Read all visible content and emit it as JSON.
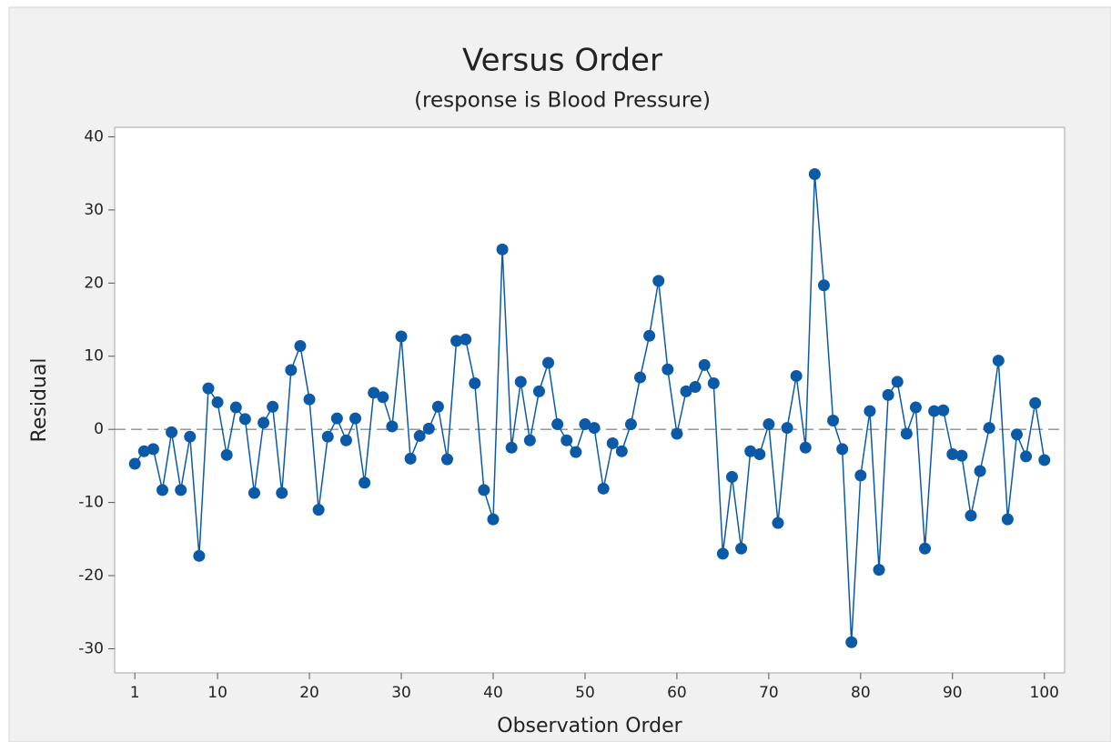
{
  "chart_data": {
    "type": "line",
    "title": "Versus Order",
    "subtitle": "(response is Blood Pressure)",
    "x_label": "Observation Order",
    "y_label": "Residual",
    "x": [
      1,
      2,
      3,
      4,
      5,
      6,
      7,
      8,
      9,
      10,
      11,
      12,
      13,
      14,
      15,
      16,
      17,
      18,
      19,
      20,
      21,
      22,
      23,
      24,
      25,
      26,
      27,
      28,
      29,
      30,
      31,
      32,
      33,
      34,
      35,
      36,
      37,
      38,
      39,
      40,
      41,
      42,
      43,
      44,
      45,
      46,
      47,
      48,
      49,
      50,
      51,
      52,
      53,
      54,
      55,
      56,
      57,
      58,
      59,
      60,
      61,
      62,
      63,
      64,
      65,
      66,
      67,
      68,
      69,
      70,
      71,
      72,
      73,
      74,
      75,
      76,
      77,
      78,
      79,
      80,
      81,
      82,
      83,
      84,
      85,
      86,
      87,
      88,
      89,
      90,
      91,
      92,
      93,
      94,
      95,
      96,
      97,
      98,
      99,
      100
    ],
    "series": [
      {
        "name": "Residual",
        "color": "#0b5aa8",
        "values": [
          -4.7,
          -3,
          -2.7,
          -8.3,
          -0.4,
          -8.3,
          -1,
          -17.3,
          5.6,
          3.7,
          -3.5,
          3,
          1.4,
          -8.7,
          0.9,
          3.1,
          -8.7,
          8.1,
          11.4,
          4.1,
          -11,
          -1,
          1.5,
          -1.5,
          1.5,
          -7.3,
          5,
          4.4,
          0.4,
          12.7,
          -4,
          -0.9,
          0.1,
          3.1,
          -4.1,
          12.1,
          12.3,
          6.3,
          -8.3,
          -12.3,
          24.6,
          -2.5,
          6.5,
          -1.5,
          5.2,
          9.1,
          0.7,
          -1.5,
          -3.1,
          0.7,
          0.2,
          -8.1,
          -1.9,
          -3,
          0.7,
          7.1,
          12.8,
          20.3,
          8.2,
          -0.6,
          5.2,
          5.8,
          8.8,
          6.3,
          -17,
          -6.5,
          -16.3,
          -3,
          -3.4,
          0.7,
          -12.8,
          0.2,
          7.3,
          -2.5,
          34.9,
          19.7,
          1.2,
          -2.7,
          -29.1,
          -6.3,
          2.5,
          -19.2,
          4.7,
          6.5,
          -0.6,
          3,
          -16.3,
          2.5,
          2.6,
          -3.4,
          -3.6,
          -11.8,
          -5.7,
          0.2,
          9.4,
          -12.3,
          -0.7,
          -3.7,
          3.6,
          -4.2
        ]
      }
    ],
    "xlim": [
      -1.2,
      102.2
    ],
    "xticks": [
      1,
      10,
      20,
      30,
      40,
      50,
      60,
      70,
      80,
      90,
      100
    ],
    "ylim": [
      -33.3,
      41.3
    ],
    "yticks": [
      -30,
      -20,
      -10,
      0,
      10,
      20,
      30,
      40
    ],
    "reference_line": 0,
    "markers": true
  }
}
